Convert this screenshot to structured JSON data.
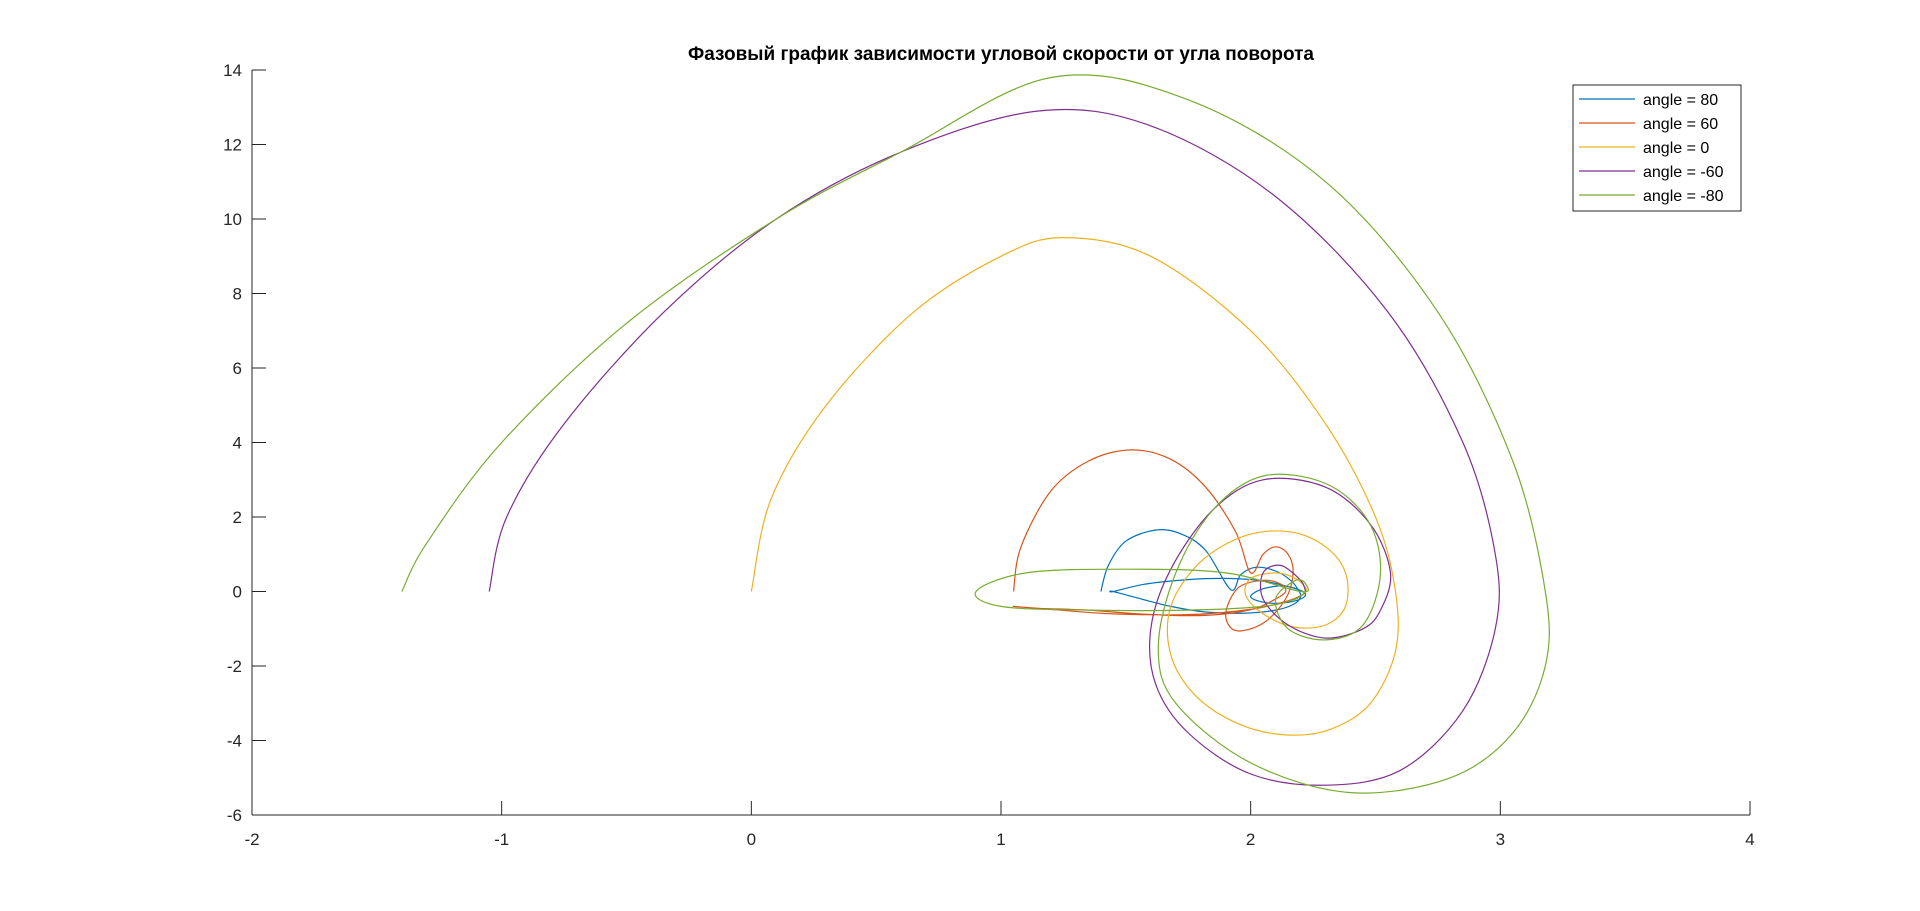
{
  "chart_data": {
    "type": "line",
    "title": "Фазовый график зависимости угловой скорости от угла поворота",
    "xlabel": "",
    "ylabel": "",
    "xlim": [
      -2,
      4
    ],
    "ylim": [
      -6,
      14
    ],
    "x_ticks": [
      -2,
      -1,
      0,
      1,
      2,
      3,
      4
    ],
    "y_ticks": [
      -6,
      -4,
      -2,
      0,
      2,
      4,
      6,
      8,
      10,
      12,
      14
    ],
    "x_tick_labels": [
      "-2",
      "-1",
      "0",
      "1",
      "2",
      "3",
      "4"
    ],
    "y_tick_labels": [
      "-6",
      "-4",
      "-2",
      "0",
      "2",
      "4",
      "6",
      "8",
      "10",
      "12",
      "14"
    ],
    "grid": false,
    "legend_position": "top-right",
    "series": [
      {
        "name": "angle = 80",
        "color": "#0072BD",
        "x": [
          1.4,
          1.43,
          1.5,
          1.62,
          1.72,
          1.82,
          1.92,
          1.96,
          2.02,
          2.1,
          2.16,
          2.19,
          2.2,
          2.17,
          2.1,
          1.98,
          1.82,
          1.68,
          1.55,
          1.45,
          1.45,
          1.58,
          1.75,
          1.92,
          2.05,
          2.14,
          2.2,
          2.22,
          2.2,
          2.14,
          2.06,
          2.0,
          2.04,
          2.12,
          2.18,
          2.2
        ],
        "y": [
          0.0,
          0.7,
          1.35,
          1.65,
          1.55,
          1.1,
          0.05,
          0.45,
          0.65,
          0.55,
          0.3,
          0.05,
          -0.15,
          -0.35,
          -0.5,
          -0.58,
          -0.55,
          -0.4,
          -0.18,
          0.0,
          0.0,
          0.2,
          0.32,
          0.35,
          0.28,
          0.15,
          0.03,
          -0.08,
          -0.2,
          -0.3,
          -0.3,
          -0.15,
          0.05,
          0.15,
          0.08,
          0.0
        ]
      },
      {
        "name": "angle = 60",
        "color": "#D95319",
        "x": [
          1.05,
          1.08,
          1.2,
          1.35,
          1.52,
          1.68,
          1.82,
          1.94,
          2.0,
          2.05,
          2.1,
          2.15,
          2.17,
          2.14,
          2.05,
          1.94,
          1.9,
          1.95,
          2.05,
          2.12,
          2.14,
          2.1,
          2.02,
          1.9,
          1.75,
          1.55,
          1.35,
          1.15,
          1.05,
          1.2,
          1.45,
          1.75,
          2.0,
          2.15,
          2.21,
          2.22
        ],
        "y": [
          0.0,
          1.2,
          2.7,
          3.5,
          3.8,
          3.55,
          2.8,
          1.6,
          0.5,
          1.0,
          1.2,
          1.0,
          0.5,
          -0.2,
          -0.85,
          -1.05,
          -0.6,
          0.1,
          0.3,
          0.2,
          0.0,
          -0.2,
          -0.45,
          -0.6,
          -0.65,
          -0.6,
          -0.5,
          -0.45,
          -0.4,
          -0.48,
          -0.6,
          -0.62,
          -0.48,
          -0.25,
          -0.08,
          0.0
        ]
      },
      {
        "name": "angle = 0",
        "color": "#EDB120",
        "x": [
          0.0,
          0.08,
          0.3,
          0.65,
          1.0,
          1.25,
          1.6,
          2.0,
          2.3,
          2.5,
          2.58,
          2.58,
          2.48,
          2.32,
          2.14,
          1.95,
          1.78,
          1.68,
          1.68,
          1.8,
          1.98,
          2.16,
          2.3,
          2.38,
          2.38,
          2.3,
          2.17,
          2.05,
          1.98,
          2.0,
          2.1,
          2.18,
          2.22,
          2.22
        ],
        "y": [
          0.0,
          2.5,
          5.0,
          7.5,
          9.0,
          9.5,
          9.0,
          7.0,
          4.5,
          2.0,
          0.0,
          -1.6,
          -3.0,
          -3.7,
          -3.85,
          -3.55,
          -2.8,
          -1.7,
          -0.4,
          0.8,
          1.5,
          1.6,
          1.2,
          0.5,
          -0.4,
          -0.9,
          -0.95,
          -0.6,
          -0.1,
          0.35,
          0.5,
          0.35,
          0.1,
          0.0
        ]
      },
      {
        "name": "angle = -60",
        "color": "#7E2F8E",
        "x": [
          -1.05,
          -0.98,
          -0.75,
          -0.35,
          0.1,
          0.6,
          1.15,
          1.6,
          2.1,
          2.55,
          2.85,
          2.98,
          2.98,
          2.85,
          2.6,
          2.3,
          2.0,
          1.75,
          1.62,
          1.6,
          1.68,
          1.85,
          2.05,
          2.3,
          2.48,
          2.56,
          2.52,
          2.45,
          2.3,
          2.15,
          2.05,
          2.05,
          2.12,
          2.2,
          2.22
        ],
        "y": [
          0.0,
          2.0,
          4.5,
          7.5,
          10.0,
          11.8,
          12.9,
          12.5,
          10.6,
          7.5,
          4.0,
          1.0,
          -1.0,
          -3.2,
          -4.8,
          -5.2,
          -4.9,
          -3.8,
          -2.5,
          -1.0,
          0.6,
          2.2,
          3.0,
          2.8,
          1.8,
          0.5,
          -0.5,
          -1.0,
          -1.25,
          -0.9,
          -0.2,
          0.5,
          0.7,
          0.3,
          0.0
        ]
      },
      {
        "name": "angle = -80",
        "color": "#77AC30",
        "x": [
          -1.4,
          -1.3,
          -1.0,
          -0.5,
          0.1,
          0.6,
          1.2,
          1.75,
          2.3,
          2.75,
          3.05,
          3.18,
          3.18,
          3.05,
          2.8,
          2.4,
          2.0,
          1.7,
          1.63,
          1.7,
          1.85,
          2.05,
          2.3,
          2.47,
          2.52,
          2.45,
          2.3,
          2.15,
          2.1,
          2.18,
          2.22,
          2.2,
          1.9,
          1.5,
          1.1,
          0.9,
          1.0,
          1.35,
          1.75,
          2.05,
          2.18,
          2.22
        ],
        "y": [
          0.0,
          1.3,
          4.0,
          7.2,
          10.0,
          11.8,
          13.8,
          13.2,
          11.0,
          7.5,
          3.5,
          0.0,
          -2.0,
          -3.8,
          -5.0,
          -5.4,
          -4.6,
          -3.0,
          -1.5,
          0.5,
          2.2,
          3.1,
          2.9,
          1.9,
          0.5,
          -0.9,
          -1.3,
          -1.0,
          -0.2,
          0.3,
          0.2,
          0.0,
          0.5,
          0.6,
          0.5,
          0.0,
          -0.4,
          -0.5,
          -0.5,
          -0.4,
          -0.2,
          0.0
        ]
      }
    ]
  }
}
